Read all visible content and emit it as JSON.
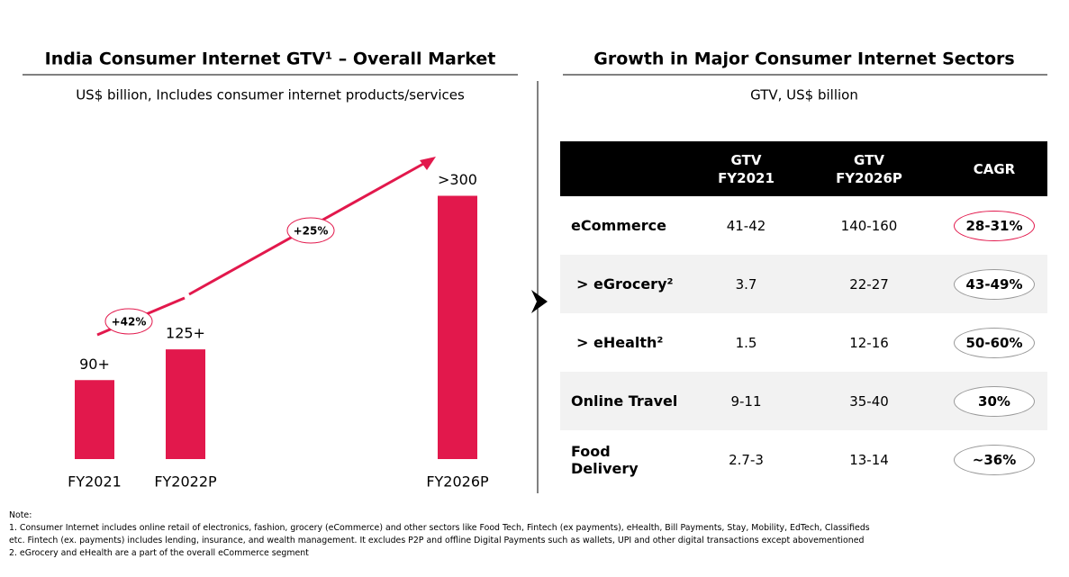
{
  "chart_data": {
    "type": "bar",
    "title": "India Consumer Internet GTV¹ – Overall Market",
    "subtitle": "US$ billion,  Includes consumer internet products/services",
    "categories": [
      "FY2021",
      "FY2022P",
      "FY2026P"
    ],
    "values": [
      90,
      125,
      300
    ],
    "value_labels": [
      "90+",
      "125+",
      ">300"
    ],
    "color": "#e2184c",
    "annotations": [
      "+42%",
      "+25%"
    ]
  },
  "table": {
    "title": "Growth in Major Consumer Internet Sectors",
    "subtitle": "GTV, US$ billion",
    "columns": [
      "GTV FY2021",
      "GTV FY2026P",
      "CAGR"
    ],
    "rows": [
      [
        "eCommerce",
        "41-42",
        "140-160",
        "28-31%"
      ],
      [
        "> eGrocery²",
        "3.7",
        "22-27",
        "43-49%"
      ],
      [
        "> eHealth²",
        "1.5",
        "12-16",
        "50-60%"
      ],
      [
        "Online Travel",
        "9-11",
        "35-40",
        "30%"
      ],
      [
        "Food Delivery",
        "2.7-3",
        "13-14",
        "~36%"
      ]
    ]
  },
  "notes": {
    "heading": "Note:",
    "lines": [
      "1. Consumer Internet includes online retail of electronics, fashion, grocery (eCommerce) and other sectors like Food Tech, Fintech (ex payments), eHealth, Bill Payments, Stay, Mobility, EdTech, Classifieds",
      "etc. Fintech (ex. payments) includes lending, insurance, and wealth management. It excludes P2P and offline Digital Payments such as wallets, UPI and other digital transactions except abovementioned",
      "2. eGrocery and eHealth are a part of the overall eCommerce segment"
    ]
  }
}
